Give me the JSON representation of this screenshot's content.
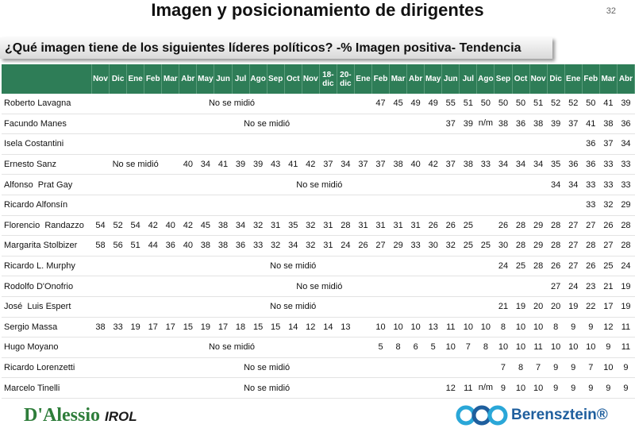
{
  "header": {
    "title": "Imagen y posicionamiento de dirigentes",
    "page_number": "32"
  },
  "question": "¿Qué imagen tiene de los siguientes líderes políticos? -% Imagen positiva- Tendencia",
  "table": {
    "columns": [
      "Nov",
      "Dic",
      "Ene",
      "Feb",
      "Mar",
      "Abr",
      "May",
      "Jun",
      "Jul",
      "Ago",
      "Sep",
      "Oct",
      "Nov",
      "18-dic",
      "20-dic",
      "Ene",
      "Feb",
      "Mar",
      "Abr",
      "May",
      "Jun",
      "Jul",
      "Ago",
      "Sep",
      "Oct",
      "Nov",
      "Dic",
      "Ene",
      "Feb",
      "Mar",
      "Abr"
    ],
    "rows": [
      {
        "name": "Roberto Lavagna",
        "cells": [
          "No se midió",
          47,
          45,
          49,
          49,
          55,
          51,
          50,
          50,
          50,
          51,
          52,
          52,
          50,
          41,
          39
        ]
      },
      {
        "name": "Facundo Manes",
        "cells": [
          "No se midió",
          37,
          39,
          "n/m",
          38,
          36,
          38,
          39,
          37,
          41,
          38,
          36
        ]
      },
      {
        "name": "Isela Costantini",
        "cells": [
          null,
          null,
          null,
          null,
          null,
          null,
          null,
          null,
          null,
          null,
          null,
          null,
          null,
          null,
          null,
          null,
          null,
          null,
          null,
          null,
          null,
          null,
          null,
          null,
          null,
          null,
          null,
          null,
          36,
          37,
          34
        ]
      },
      {
        "name": "Ernesto Sanz",
        "cells": [
          "No se midió",
          40,
          34,
          41,
          39,
          39,
          43,
          41,
          42,
          37,
          34,
          37,
          37,
          38,
          40,
          42,
          37,
          38,
          33,
          34,
          34,
          34,
          35,
          36,
          36,
          33,
          33
        ]
      },
      {
        "name": "Alfonso  Prat Gay",
        "cells": [
          "No se midió",
          34,
          34,
          33,
          33,
          33
        ]
      },
      {
        "name": "Ricardo Alfonsín",
        "cells": [
          null,
          null,
          null,
          null,
          null,
          null,
          null,
          null,
          null,
          null,
          null,
          null,
          null,
          null,
          null,
          null,
          null,
          null,
          null,
          null,
          null,
          null,
          null,
          null,
          null,
          null,
          null,
          null,
          33,
          32,
          29
        ]
      },
      {
        "name": "Florencio  Randazzo",
        "cells": [
          54,
          52,
          54,
          42,
          40,
          42,
          45,
          38,
          34,
          32,
          31,
          35,
          32,
          31,
          28,
          31,
          31,
          31,
          31,
          26,
          26,
          25,
          null,
          26,
          28,
          29,
          28,
          27,
          27,
          26,
          28
        ]
      },
      {
        "name": "Margarita Stolbizer",
        "cells": [
          58,
          56,
          51,
          44,
          36,
          40,
          38,
          38,
          36,
          33,
          32,
          34,
          32,
          31,
          24,
          26,
          27,
          29,
          33,
          30,
          32,
          25,
          25,
          30,
          28,
          29,
          28,
          27,
          28,
          27,
          28
        ]
      },
      {
        "name": "Ricardo L. Murphy",
        "cells": [
          "No se midió",
          24,
          25,
          28,
          26,
          27,
          26,
          25,
          24
        ]
      },
      {
        "name": "Rodolfo D'Onofrio",
        "cells": [
          "No se midió",
          27,
          24,
          23,
          21,
          19
        ]
      },
      {
        "name": "José  Luis Espert",
        "cells": [
          "No se midió",
          21,
          19,
          20,
          20,
          19,
          22,
          17,
          19
        ]
      },
      {
        "name": "Sergio Massa",
        "cells": [
          38,
          33,
          19,
          17,
          17,
          15,
          19,
          17,
          18,
          15,
          15,
          14,
          12,
          14,
          13,
          null,
          10,
          10,
          10,
          13,
          11,
          10,
          10,
          8,
          10,
          10,
          8,
          9,
          9,
          12,
          11
        ]
      },
      {
        "name": "Hugo Moyano",
        "cells": [
          "No se midió",
          5,
          8,
          6,
          5,
          10,
          7,
          8,
          10,
          10,
          11,
          10,
          10,
          10,
          9,
          11
        ]
      },
      {
        "name": "Ricardo Lorenzetti",
        "cells": [
          "No se midió",
          null,
          null,
          null,
          7,
          8,
          7,
          9,
          9,
          7,
          10,
          9
        ]
      },
      {
        "name": "Marcelo Tinelli",
        "cells": [
          "No se midió",
          12,
          11,
          "n/m",
          9,
          10,
          10,
          9,
          9,
          9,
          9,
          9
        ]
      }
    ]
  },
  "footer": {
    "left_logo": "D'Alessio",
    "left_logo_suffix": "IROL",
    "right_logo": "Berensztein®"
  }
}
